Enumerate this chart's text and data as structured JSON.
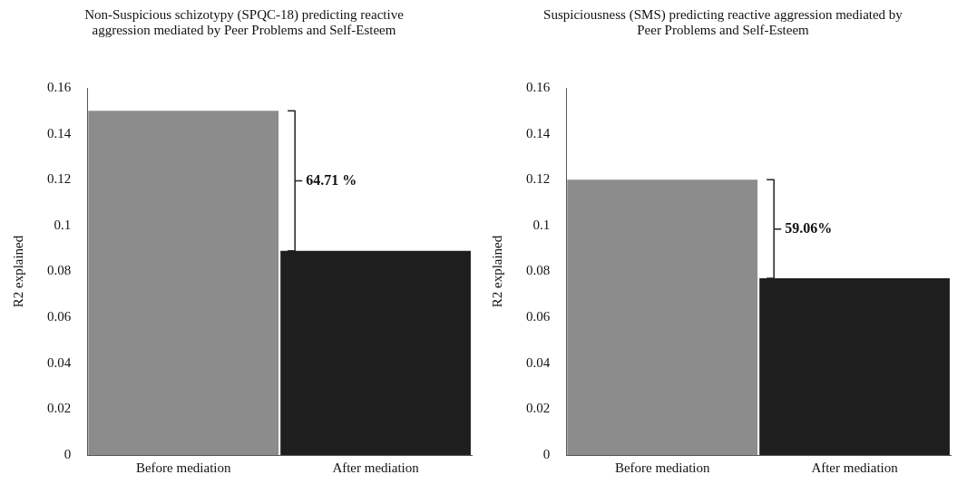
{
  "chart_data": [
    {
      "type": "bar",
      "title": "Non-Suspicious schizotypy (SPQC-18) predicting reactive aggression mediated by Peer Problems and Self-Esteem",
      "ylabel": "R2 explained",
      "categories": [
        "Before mediation",
        "After mediation"
      ],
      "values": [
        0.15,
        0.089
      ],
      "colors": [
        "#8c8c8c",
        "#1e1e1e"
      ],
      "ylim": [
        0,
        0.16
      ],
      "yticks": [
        0,
        0.02,
        0.04,
        0.06,
        0.08,
        0.1,
        0.12,
        0.14,
        0.16
      ],
      "grid": false,
      "legend": false,
      "annotations": [
        "64.71 %"
      ]
    },
    {
      "type": "bar",
      "title": "Suspiciousness (SMS) predicting reactive aggression mediated by Peer Problems and Self-Esteem",
      "ylabel": "R2 explained",
      "categories": [
        "Before mediation",
        "After mediation"
      ],
      "values": [
        0.12,
        0.077
      ],
      "colors": [
        "#8c8c8c",
        "#1e1e1e"
      ],
      "ylim": [
        0,
        0.16
      ],
      "yticks": [
        0,
        0.02,
        0.04,
        0.06,
        0.08,
        0.1,
        0.12,
        0.14,
        0.16
      ],
      "grid": false,
      "legend": false,
      "annotations": [
        "59.06%"
      ]
    }
  ]
}
